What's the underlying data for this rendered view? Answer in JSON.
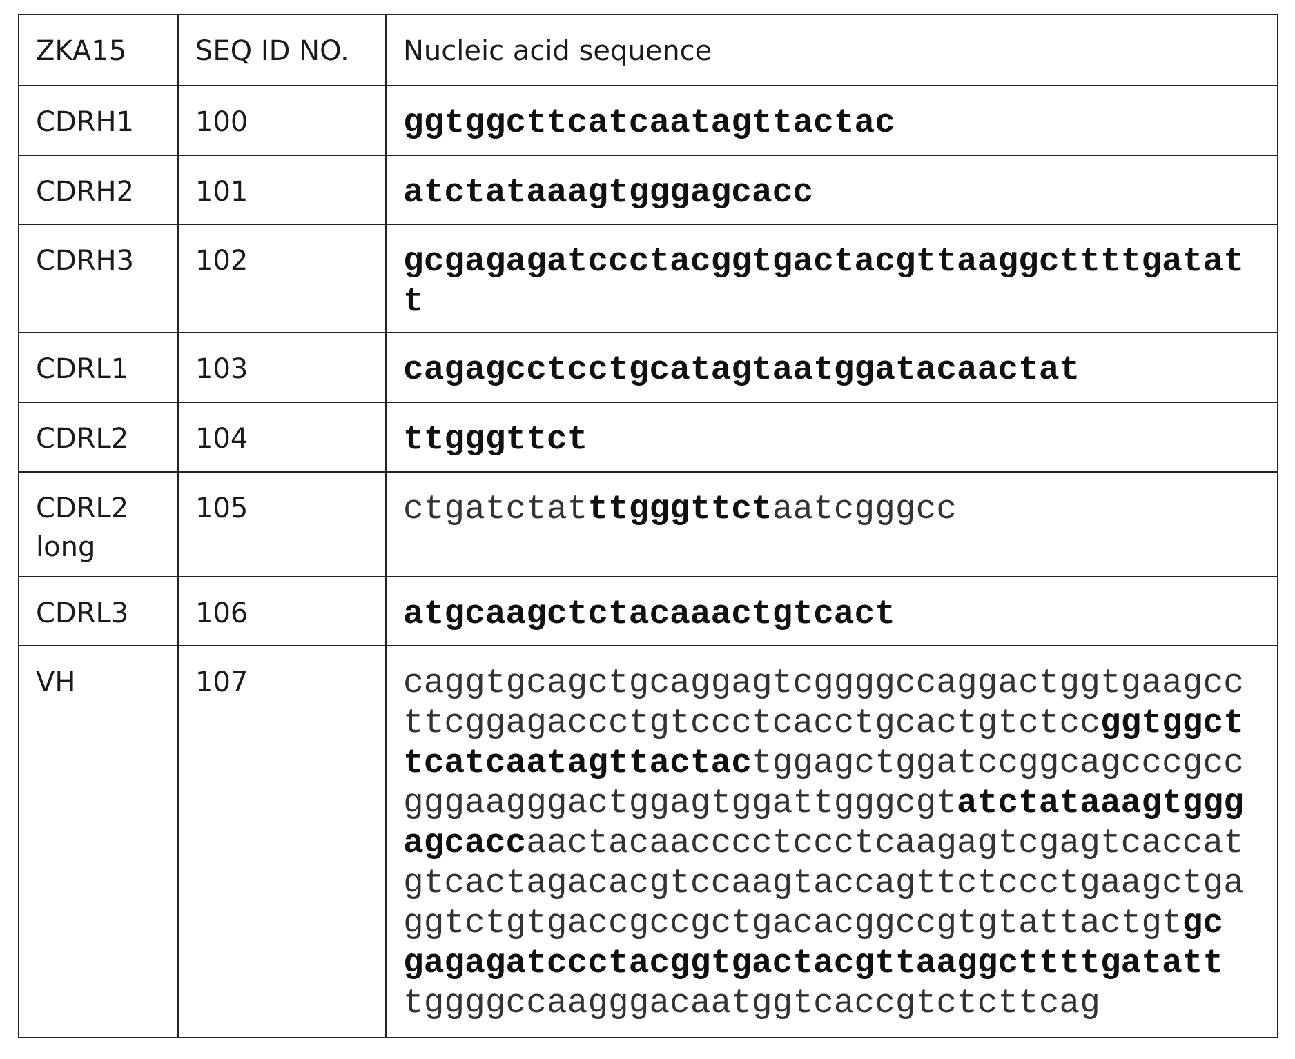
{
  "header": {
    "col1": "ZKA15",
    "col2": "SEQ ID NO.",
    "col3": "Nucleic acid sequence"
  },
  "rows": [
    {
      "name": "CDRH1",
      "seq_id": "100",
      "sequence": [
        {
          "text": "ggtggcttcatcaatagttactac",
          "bold": true
        }
      ]
    },
    {
      "name": "CDRH2",
      "seq_id": "101",
      "sequence": [
        {
          "text": "atctataaagtgggagcacc",
          "bold": true
        }
      ]
    },
    {
      "name": "CDRH3",
      "seq_id": "102",
      "sequence": [
        {
          "text": "gcgagagatccctacggtgactacgttaaggcttttgatatt",
          "bold": true
        }
      ]
    },
    {
      "name": "CDRL1",
      "seq_id": "103",
      "sequence": [
        {
          "text": "cagagcctcctgcatagtaatggatacaactat",
          "bold": true
        }
      ]
    },
    {
      "name": "CDRL2",
      "seq_id": "104",
      "sequence": [
        {
          "text": "ttgggttct",
          "bold": true
        }
      ]
    },
    {
      "name": "CDRL2 long",
      "seq_id": "105",
      "sequence": [
        {
          "text": "ctgatctat",
          "bold": false
        },
        {
          "text": "ttgggttct",
          "bold": true
        },
        {
          "text": "aatcgggcc",
          "bold": false
        }
      ]
    },
    {
      "name": "CDRL3",
      "seq_id": "106",
      "sequence": [
        {
          "text": "atgcaagctctacaaactgtcact",
          "bold": true
        }
      ]
    },
    {
      "name": "VH",
      "seq_id": "107",
      "sequence": [
        {
          "text": "caggtgcagctgcaggagtcggggccaggactggtgaagccttcggagaccctgtccctcacctgcactgtctcc",
          "bold": false
        },
        {
          "text": "ggtggcttcatcaatagttactac",
          "bold": true
        },
        {
          "text": "tggagctggatccggcagcccgccgggaagggactggagtggattgggcgt",
          "bold": false
        },
        {
          "text": "atctataaagtgggagcacc",
          "bold": true
        },
        {
          "text": "aactacaacccctccctcaagagtcgagtcaccatgtcactagacacgtccaagtaccagttctccctgaagctgaggtctgtgaccgccgctgacacggccgtgtattactgt",
          "bold": false
        },
        {
          "text": "gcgagagatccctacggtgactacgttaaggcttttgatatt",
          "bold": true
        },
        {
          "text": "tggggccaagggacaatggtcaccgtctcttcag",
          "bold": false
        }
      ]
    }
  ]
}
